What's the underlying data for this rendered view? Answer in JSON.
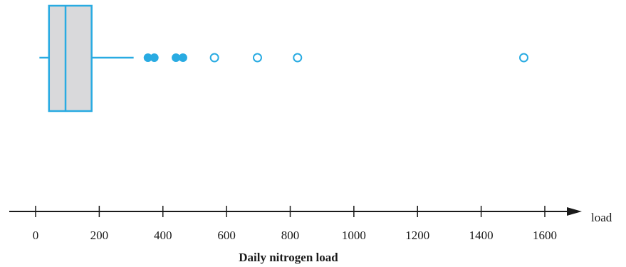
{
  "chart_data": {
    "type": "boxplot",
    "title": "",
    "xlabel": "Daily nitrogen load",
    "axis_end_label": "load",
    "xlim": [
      0,
      1600
    ],
    "ticks": [
      0,
      200,
      400,
      600,
      800,
      1000,
      1200,
      1400,
      1600
    ],
    "tick_labels": [
      "0",
      "200",
      "400",
      "600",
      "800",
      "1000",
      "1200",
      "1400",
      "1600"
    ],
    "box": {
      "whisker_low": 12,
      "q1": 42,
      "median": 94,
      "q3": 176,
      "whisker_high": 308
    },
    "mild_outliers": [
      353,
      373,
      441,
      463
    ],
    "extreme_outliers": [
      562,
      697,
      823,
      1534
    ],
    "colors": {
      "box_stroke": "#29abe2",
      "box_fill": "#d9d9db",
      "mild_outlier": "#29abe2",
      "extreme_outlier_stroke": "#29abe2",
      "axis": "#1a1a1a"
    }
  }
}
